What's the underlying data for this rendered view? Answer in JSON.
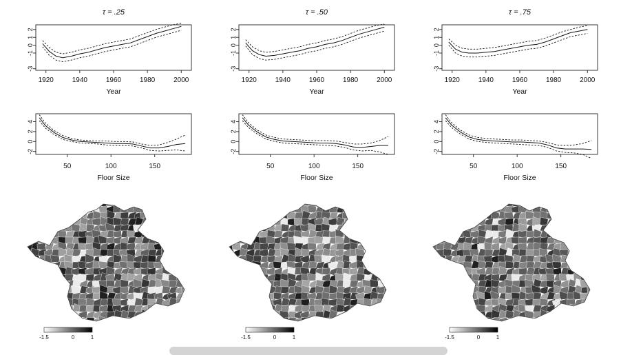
{
  "chart_data": [
    {
      "type": "line",
      "title": "τ = .25",
      "xlabel": "Year",
      "xlim": [
        1914,
        2006
      ],
      "ylim": [
        -3.2,
        2.6
      ],
      "xticks": [
        1920,
        1940,
        1960,
        1980,
        2000
      ],
      "yticks": [
        -3,
        -1,
        0,
        1,
        2
      ],
      "series": [
        {
          "style": "solid",
          "x": [
            1918,
            1922,
            1926,
            1930,
            1935,
            1940,
            1945,
            1950,
            1955,
            1960,
            1965,
            1970,
            1975,
            1980,
            1985,
            1990,
            1995,
            2000
          ],
          "y": [
            0.2,
            -0.8,
            -1.4,
            -1.6,
            -1.4,
            -1.1,
            -0.9,
            -0.6,
            -0.3,
            -0.1,
            0.1,
            0.3,
            0.7,
            1.1,
            1.5,
            1.8,
            2.1,
            2.4
          ]
        },
        {
          "style": "dashed",
          "x": [
            1918,
            1922,
            1926,
            1930,
            1935,
            1940,
            1945,
            1950,
            1955,
            1960,
            1965,
            1970,
            1975,
            1980,
            1985,
            1990,
            1995,
            2000
          ],
          "y": [
            0.6,
            -0.3,
            -0.9,
            -1.1,
            -0.9,
            -0.6,
            -0.4,
            -0.1,
            0.2,
            0.4,
            0.6,
            0.8,
            1.2,
            1.6,
            2.0,
            2.3,
            2.6,
            2.8
          ]
        },
        {
          "style": "dashed",
          "x": [
            1918,
            1922,
            1926,
            1930,
            1935,
            1940,
            1945,
            1950,
            1955,
            1960,
            1965,
            1970,
            1975,
            1980,
            1985,
            1990,
            1995,
            2000
          ],
          "y": [
            -0.2,
            -1.3,
            -1.9,
            -2.1,
            -1.9,
            -1.6,
            -1.4,
            -1.1,
            -0.8,
            -0.6,
            -0.4,
            -0.2,
            0.2,
            0.6,
            1.0,
            1.3,
            1.6,
            1.9
          ]
        }
      ]
    },
    {
      "type": "line",
      "title": "τ = .50",
      "xlabel": "Year",
      "xlim": [
        1914,
        2006
      ],
      "ylim": [
        -3.2,
        2.6
      ],
      "xticks": [
        1920,
        1940,
        1960,
        1980,
        2000
      ],
      "yticks": [
        -3,
        -1,
        0,
        1,
        2
      ],
      "series": [
        {
          "style": "solid",
          "x": [
            1918,
            1922,
            1926,
            1930,
            1935,
            1940,
            1945,
            1950,
            1955,
            1960,
            1965,
            1970,
            1975,
            1980,
            1985,
            1990,
            1995,
            2000
          ],
          "y": [
            0.3,
            -0.7,
            -1.2,
            -1.4,
            -1.3,
            -1.1,
            -0.9,
            -0.7,
            -0.4,
            -0.2,
            0.1,
            0.3,
            0.6,
            1.0,
            1.4,
            1.7,
            2.0,
            2.3
          ]
        },
        {
          "style": "dashed",
          "x": [
            1918,
            1922,
            1926,
            1930,
            1935,
            1940,
            1945,
            1950,
            1955,
            1960,
            1965,
            1970,
            1975,
            1980,
            1985,
            1990,
            1995,
            2000
          ],
          "y": [
            0.7,
            -0.2,
            -0.7,
            -0.9,
            -0.8,
            -0.6,
            -0.4,
            -0.2,
            0.1,
            0.3,
            0.6,
            0.8,
            1.1,
            1.5,
            1.9,
            2.2,
            2.5,
            2.7
          ]
        },
        {
          "style": "dashed",
          "x": [
            1918,
            1922,
            1926,
            1930,
            1935,
            1940,
            1945,
            1950,
            1955,
            1960,
            1965,
            1970,
            1975,
            1980,
            1985,
            1990,
            1995,
            2000
          ],
          "y": [
            -0.1,
            -1.2,
            -1.7,
            -1.9,
            -1.8,
            -1.6,
            -1.4,
            -1.2,
            -0.9,
            -0.7,
            -0.4,
            -0.2,
            0.1,
            0.5,
            0.9,
            1.2,
            1.5,
            1.8
          ]
        }
      ]
    },
    {
      "type": "line",
      "title": "τ = .75",
      "xlabel": "Year",
      "xlim": [
        1914,
        2006
      ],
      "ylim": [
        -3.2,
        2.6
      ],
      "xticks": [
        1920,
        1940,
        1960,
        1980,
        2000
      ],
      "yticks": [
        -3,
        -1,
        0,
        1,
        2
      ],
      "series": [
        {
          "style": "solid",
          "x": [
            1918,
            1922,
            1926,
            1930,
            1935,
            1940,
            1945,
            1950,
            1955,
            1960,
            1965,
            1970,
            1975,
            1980,
            1985,
            1990,
            1995,
            2000
          ],
          "y": [
            0.4,
            -0.5,
            -0.9,
            -1.0,
            -1.0,
            -0.9,
            -0.8,
            -0.6,
            -0.4,
            -0.2,
            0.0,
            0.1,
            0.4,
            0.8,
            1.2,
            1.6,
            1.8,
            2.0
          ]
        },
        {
          "style": "dashed",
          "x": [
            1918,
            1922,
            1926,
            1930,
            1935,
            1940,
            1945,
            1950,
            1955,
            1960,
            1965,
            1970,
            1975,
            1980,
            1985,
            1990,
            1995,
            2000
          ],
          "y": [
            0.8,
            0.0,
            -0.4,
            -0.5,
            -0.5,
            -0.4,
            -0.3,
            -0.1,
            0.1,
            0.3,
            0.5,
            0.6,
            0.9,
            1.3,
            1.7,
            2.0,
            2.3,
            2.5
          ]
        },
        {
          "style": "dashed",
          "x": [
            1918,
            1922,
            1926,
            1930,
            1935,
            1940,
            1945,
            1950,
            1955,
            1960,
            1965,
            1970,
            1975,
            1980,
            1985,
            1990,
            1995,
            2000
          ],
          "y": [
            0.0,
            -1.0,
            -1.4,
            -1.5,
            -1.5,
            -1.4,
            -1.3,
            -1.1,
            -0.9,
            -0.7,
            -0.5,
            -0.4,
            -0.1,
            0.3,
            0.7,
            1.1,
            1.3,
            1.5
          ]
        }
      ]
    },
    {
      "type": "line",
      "title": "",
      "xlabel": "Floor Size",
      "xlim": [
        14,
        192
      ],
      "ylim": [
        -2.6,
        5.6
      ],
      "xticks": [
        50,
        100,
        150
      ],
      "yticks": [
        -2,
        0,
        2,
        4
      ],
      "series": [
        {
          "style": "solid",
          "x": [
            18,
            25,
            35,
            45,
            55,
            65,
            75,
            85,
            95,
            105,
            115,
            125,
            135,
            145,
            155,
            165,
            175,
            185
          ],
          "y": [
            4.8,
            3.2,
            1.8,
            0.8,
            0.3,
            0.0,
            -0.1,
            -0.2,
            -0.3,
            -0.4,
            -0.4,
            -0.5,
            -0.9,
            -1.3,
            -1.3,
            -1.0,
            -0.6,
            -0.4
          ]
        },
        {
          "style": "dashed",
          "x": [
            18,
            25,
            35,
            45,
            55,
            65,
            75,
            85,
            95,
            105,
            115,
            125,
            135,
            145,
            155,
            165,
            175,
            185
          ],
          "y": [
            5.4,
            3.7,
            2.2,
            1.2,
            0.6,
            0.3,
            0.2,
            0.1,
            0.1,
            0.0,
            0.0,
            -0.1,
            -0.5,
            -0.8,
            -0.7,
            -0.2,
            0.5,
            1.3
          ]
        },
        {
          "style": "dashed",
          "x": [
            18,
            25,
            35,
            45,
            55,
            65,
            75,
            85,
            95,
            105,
            115,
            125,
            135,
            145,
            155,
            165,
            175,
            185
          ],
          "y": [
            4.2,
            2.7,
            1.4,
            0.4,
            0.0,
            -0.3,
            -0.4,
            -0.5,
            -0.7,
            -0.8,
            -0.8,
            -0.9,
            -1.3,
            -1.8,
            -1.9,
            -1.8,
            -1.7,
            -1.9
          ]
        }
      ]
    },
    {
      "type": "line",
      "title": "",
      "xlabel": "Floor Size",
      "xlim": [
        14,
        192
      ],
      "ylim": [
        -2.6,
        5.6
      ],
      "xticks": [
        50,
        100,
        150
      ],
      "yticks": [
        -2,
        0,
        2,
        4
      ],
      "series": [
        {
          "style": "solid",
          "x": [
            18,
            25,
            35,
            45,
            55,
            65,
            75,
            85,
            95,
            105,
            115,
            125,
            135,
            145,
            155,
            165,
            175,
            185
          ],
          "y": [
            4.8,
            3.3,
            1.9,
            0.9,
            0.4,
            0.1,
            0.0,
            -0.1,
            -0.2,
            -0.3,
            -0.3,
            -0.4,
            -0.7,
            -1.1,
            -1.2,
            -1.0,
            -0.8,
            -0.8
          ]
        },
        {
          "style": "dashed",
          "x": [
            18,
            25,
            35,
            45,
            55,
            65,
            75,
            85,
            95,
            105,
            115,
            125,
            135,
            145,
            155,
            165,
            175,
            185
          ],
          "y": [
            5.4,
            3.8,
            2.3,
            1.3,
            0.8,
            0.5,
            0.4,
            0.3,
            0.2,
            0.2,
            0.2,
            0.1,
            -0.2,
            -0.5,
            -0.5,
            -0.3,
            0.2,
            1.0
          ]
        },
        {
          "style": "dashed",
          "x": [
            18,
            25,
            35,
            45,
            55,
            65,
            75,
            85,
            95,
            105,
            115,
            125,
            135,
            145,
            155,
            165,
            175,
            185
          ],
          "y": [
            4.2,
            2.8,
            1.5,
            0.5,
            0.0,
            -0.3,
            -0.4,
            -0.5,
            -0.6,
            -0.7,
            -0.8,
            -0.9,
            -1.2,
            -1.7,
            -1.9,
            -1.8,
            -2.1,
            -2.6
          ]
        }
      ]
    },
    {
      "type": "line",
      "title": "",
      "xlabel": "Floor Size",
      "xlim": [
        14,
        192
      ],
      "ylim": [
        -2.6,
        5.6
      ],
      "xticks": [
        50,
        100,
        150
      ],
      "yticks": [
        -2,
        0,
        2,
        4
      ],
      "series": [
        {
          "style": "solid",
          "x": [
            18,
            25,
            35,
            45,
            55,
            65,
            75,
            85,
            95,
            105,
            115,
            125,
            135,
            145,
            155,
            165,
            175,
            185
          ],
          "y": [
            4.8,
            3.3,
            1.9,
            0.9,
            0.4,
            0.2,
            0.1,
            0.0,
            -0.1,
            -0.1,
            -0.2,
            -0.3,
            -0.7,
            -1.3,
            -1.5,
            -1.5,
            -1.5,
            -1.6
          ]
        },
        {
          "style": "dashed",
          "x": [
            18,
            25,
            35,
            45,
            55,
            65,
            75,
            85,
            95,
            105,
            115,
            125,
            135,
            145,
            155,
            165,
            175,
            185
          ],
          "y": [
            5.4,
            3.8,
            2.3,
            1.3,
            0.8,
            0.6,
            0.5,
            0.4,
            0.3,
            0.3,
            0.2,
            0.1,
            -0.2,
            -0.7,
            -0.8,
            -0.7,
            -0.4,
            0.2
          ]
        },
        {
          "style": "dashed",
          "x": [
            18,
            25,
            35,
            45,
            55,
            65,
            75,
            85,
            95,
            105,
            115,
            125,
            135,
            145,
            155,
            165,
            175,
            185
          ],
          "y": [
            4.2,
            2.8,
            1.5,
            0.5,
            0.0,
            -0.2,
            -0.3,
            -0.4,
            -0.5,
            -0.6,
            -0.7,
            -0.8,
            -1.2,
            -1.9,
            -2.2,
            -2.3,
            -2.6,
            -3.4
          ]
        }
      ]
    },
    {
      "type": "heatmap",
      "colorbar": {
        "ticks": [
          "-1.5",
          "0",
          "1"
        ],
        "range": [
          -1.5,
          1
        ],
        "low_color": "#ffffff",
        "high_color": "#000000"
      }
    },
    {
      "type": "heatmap",
      "colorbar": {
        "ticks": [
          "-1.5",
          "0",
          "1"
        ],
        "range": [
          -1.5,
          1
        ],
        "low_color": "#ffffff",
        "high_color": "#000000"
      }
    },
    {
      "type": "heatmap",
      "colorbar": {
        "ticks": [
          "-1.5",
          "0",
          "1"
        ],
        "range": [
          -1.5,
          1
        ],
        "low_color": "#ffffff",
        "high_color": "#000000"
      }
    }
  ]
}
